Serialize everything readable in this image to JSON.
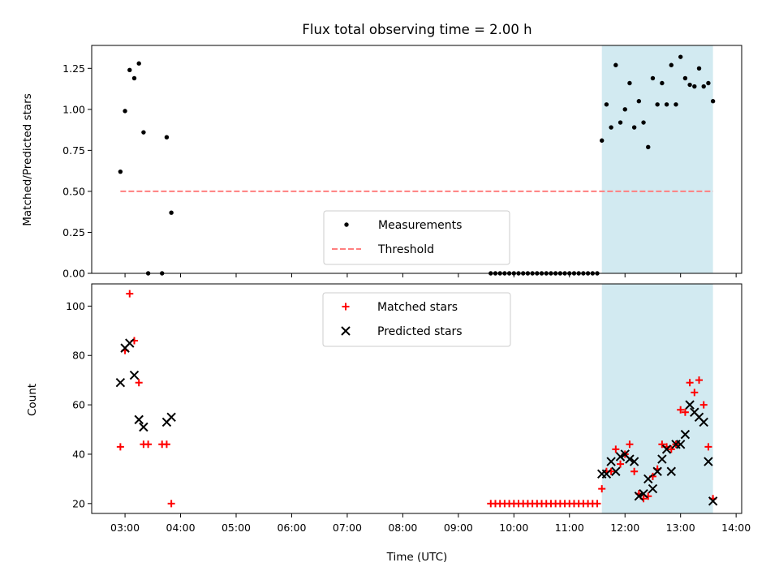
{
  "chart_data": [
    {
      "type": "scatter",
      "title": "Flux total observing time = 2.00 h",
      "xlabel": "",
      "ylabel": "Matched/Predicted stars",
      "xlim": [
        "02:24",
        "14:06"
      ],
      "ylim": [
        0,
        1.39
      ],
      "yticks": [
        "0.00",
        "0.25",
        "0.50",
        "0.75",
        "1.00",
        "1.25"
      ],
      "grid": false,
      "legend_position": "lower-center",
      "highlight_band": {
        "x_start": "11:35",
        "x_end": "13:35",
        "color": "#add8e6"
      },
      "series": [
        {
          "name": "Measurements",
          "marker": "dot",
          "color": "#000000",
          "points": [
            [
              "02:55",
              0.62
            ],
            [
              "03:00",
              0.99
            ],
            [
              "03:05",
              1.24
            ],
            [
              "03:10",
              1.19
            ],
            [
              "03:15",
              1.28
            ],
            [
              "03:20",
              0.86
            ],
            [
              "03:25",
              0.0
            ],
            [
              "03:40",
              0.0
            ],
            [
              "03:45",
              0.83
            ],
            [
              "03:50",
              0.37
            ],
            [
              "09:35",
              0.0
            ],
            [
              "09:40",
              0.0
            ],
            [
              "09:45",
              0.0
            ],
            [
              "09:50",
              0.0
            ],
            [
              "09:55",
              0.0
            ],
            [
              "10:00",
              0.0
            ],
            [
              "10:05",
              0.0
            ],
            [
              "10:10",
              0.0
            ],
            [
              "10:15",
              0.0
            ],
            [
              "10:20",
              0.0
            ],
            [
              "10:25",
              0.0
            ],
            [
              "10:30",
              0.0
            ],
            [
              "10:35",
              0.0
            ],
            [
              "10:40",
              0.0
            ],
            [
              "10:45",
              0.0
            ],
            [
              "10:50",
              0.0
            ],
            [
              "10:55",
              0.0
            ],
            [
              "11:00",
              0.0
            ],
            [
              "11:05",
              0.0
            ],
            [
              "11:10",
              0.0
            ],
            [
              "11:15",
              0.0
            ],
            [
              "11:20",
              0.0
            ],
            [
              "11:25",
              0.0
            ],
            [
              "11:30",
              0.0
            ],
            [
              "11:35",
              0.81
            ],
            [
              "11:40",
              1.03
            ],
            [
              "11:45",
              0.89
            ],
            [
              "11:50",
              1.27
            ],
            [
              "11:55",
              0.92
            ],
            [
              "12:00",
              1.0
            ],
            [
              "12:05",
              1.16
            ],
            [
              "12:10",
              0.89
            ],
            [
              "12:15",
              1.05
            ],
            [
              "12:20",
              0.92
            ],
            [
              "12:25",
              0.77
            ],
            [
              "12:30",
              1.19
            ],
            [
              "12:35",
              1.03
            ],
            [
              "12:40",
              1.16
            ],
            [
              "12:45",
              1.03
            ],
            [
              "12:50",
              1.27
            ],
            [
              "12:55",
              1.03
            ],
            [
              "13:00",
              1.32
            ],
            [
              "13:05",
              1.19
            ],
            [
              "13:10",
              1.15
            ],
            [
              "13:15",
              1.14
            ],
            [
              "13:20",
              1.25
            ],
            [
              "13:25",
              1.14
            ],
            [
              "13:30",
              1.16
            ],
            [
              "13:35",
              1.05
            ]
          ]
        },
        {
          "name": "Threshold",
          "marker": "dashed-line",
          "color": "#ff7f7f",
          "points": [
            [
              "02:55",
              0.5
            ],
            [
              "13:35",
              0.5
            ]
          ]
        }
      ]
    },
    {
      "type": "scatter",
      "title": "",
      "xlabel": "Time (UTC)",
      "ylabel": "Count",
      "xlim": [
        "02:24",
        "14:06"
      ],
      "ylim": [
        16,
        109
      ],
      "yticks": [
        "20",
        "40",
        "60",
        "80",
        "100"
      ],
      "xticks": [
        "03:00",
        "04:00",
        "05:00",
        "06:00",
        "07:00",
        "08:00",
        "09:00",
        "10:00",
        "11:00",
        "12:00",
        "13:00",
        "14:00"
      ],
      "grid": false,
      "legend_position": "upper-center",
      "highlight_band": {
        "x_start": "11:35",
        "x_end": "13:35",
        "color": "#add8e6"
      },
      "series": [
        {
          "name": "Matched stars",
          "marker": "plus",
          "color": "#ff0000",
          "points": [
            [
              "02:55",
              43
            ],
            [
              "03:00",
              82
            ],
            [
              "03:05",
              105
            ],
            [
              "03:10",
              86
            ],
            [
              "03:15",
              69
            ],
            [
              "03:20",
              44
            ],
            [
              "03:25",
              44
            ],
            [
              "03:40",
              44
            ],
            [
              "03:45",
              44
            ],
            [
              "03:50",
              20
            ],
            [
              "09:35",
              20
            ],
            [
              "09:40",
              20
            ],
            [
              "09:45",
              20
            ],
            [
              "09:50",
              20
            ],
            [
              "09:55",
              20
            ],
            [
              "10:00",
              20
            ],
            [
              "10:05",
              20
            ],
            [
              "10:10",
              20
            ],
            [
              "10:15",
              20
            ],
            [
              "10:20",
              20
            ],
            [
              "10:25",
              20
            ],
            [
              "10:30",
              20
            ],
            [
              "10:35",
              20
            ],
            [
              "10:40",
              20
            ],
            [
              "10:45",
              20
            ],
            [
              "10:50",
              20
            ],
            [
              "10:55",
              20
            ],
            [
              "11:00",
              20
            ],
            [
              "11:05",
              20
            ],
            [
              "11:10",
              20
            ],
            [
              "11:15",
              20
            ],
            [
              "11:20",
              20
            ],
            [
              "11:25",
              20
            ],
            [
              "11:30",
              20
            ],
            [
              "11:35",
              26
            ],
            [
              "11:40",
              33
            ],
            [
              "11:45",
              33
            ],
            [
              "11:50",
              42
            ],
            [
              "11:55",
              36
            ],
            [
              "12:00",
              40
            ],
            [
              "12:05",
              44
            ],
            [
              "12:10",
              33
            ],
            [
              "12:15",
              24
            ],
            [
              "12:20",
              22
            ],
            [
              "12:25",
              23
            ],
            [
              "12:30",
              31
            ],
            [
              "12:35",
              34
            ],
            [
              "12:40",
              44
            ],
            [
              "12:45",
              43
            ],
            [
              "12:50",
              42
            ],
            [
              "12:55",
              44
            ],
            [
              "13:00",
              58
            ],
            [
              "13:05",
              57
            ],
            [
              "13:10",
              69
            ],
            [
              "13:15",
              65
            ],
            [
              "13:20",
              70
            ],
            [
              "13:25",
              60
            ],
            [
              "13:30",
              43
            ],
            [
              "13:35",
              22
            ]
          ]
        },
        {
          "name": "Predicted stars",
          "marker": "x",
          "color": "#000000",
          "points": [
            [
              "02:55",
              69
            ],
            [
              "03:00",
              83
            ],
            [
              "03:05",
              85
            ],
            [
              "03:10",
              72
            ],
            [
              "03:15",
              54
            ],
            [
              "03:20",
              51
            ],
            [
              "03:45",
              53
            ],
            [
              "03:50",
              55
            ],
            [
              "11:35",
              32
            ],
            [
              "11:40",
              32
            ],
            [
              "11:45",
              37
            ],
            [
              "11:50",
              33
            ],
            [
              "11:55",
              39
            ],
            [
              "12:00",
              40
            ],
            [
              "12:05",
              38
            ],
            [
              "12:10",
              37
            ],
            [
              "12:15",
              23
            ],
            [
              "12:20",
              24
            ],
            [
              "12:25",
              30
            ],
            [
              "12:30",
              26
            ],
            [
              "12:35",
              33
            ],
            [
              "12:40",
              38
            ],
            [
              "12:45",
              42
            ],
            [
              "12:50",
              33
            ],
            [
              "12:55",
              44
            ],
            [
              "13:00",
              44
            ],
            [
              "13:05",
              48
            ],
            [
              "13:10",
              60
            ],
            [
              "13:15",
              57
            ],
            [
              "13:20",
              55
            ],
            [
              "13:25",
              53
            ],
            [
              "13:30",
              37
            ],
            [
              "13:35",
              21
            ]
          ]
        }
      ]
    }
  ]
}
